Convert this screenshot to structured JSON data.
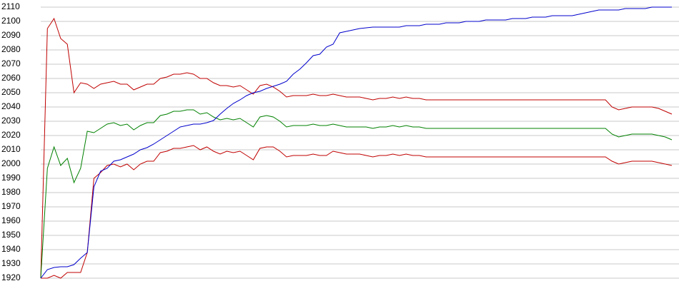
{
  "chart_data": {
    "type": "line",
    "categories": [
      null,
      null,
      null,
      null,
      null,
      null,
      null,
      null,
      null,
      null,
      null,
      null,
      null,
      null,
      null,
      null,
      null,
      null,
      null,
      null,
      null,
      null,
      null,
      null,
      null,
      null,
      null,
      null,
      null,
      null,
      null,
      null,
      null,
      null,
      null,
      null,
      null,
      null,
      null,
      null,
      null,
      null,
      null,
      null,
      null,
      null,
      null,
      null,
      null,
      null,
      null,
      null,
      null,
      null,
      null,
      null,
      null,
      null,
      null,
      null,
      null,
      null,
      null,
      null,
      null,
      null,
      null,
      null,
      null,
      null,
      null,
      null,
      null,
      null,
      null,
      null,
      null,
      null,
      null,
      null,
      null,
      null,
      null,
      null,
      null,
      null,
      null,
      null,
      null,
      null,
      null,
      null,
      null,
      null,
      null,
      null
    ],
    "series": [
      {
        "color": "#c00000",
        "values": [
          1920,
          2095,
          2102,
          2088,
          2084,
          2050,
          2057,
          2056,
          2053,
          2056,
          2057,
          2058,
          2056,
          2056,
          2052,
          2054,
          2056,
          2056,
          2060,
          2061,
          2063,
          2063,
          2064,
          2063,
          2060,
          2060,
          2057,
          2055,
          2055,
          2054,
          2055,
          2052,
          2049,
          2055,
          2056,
          2054,
          2051,
          2047,
          2048,
          2048,
          2048,
          2049,
          2048,
          2048,
          2049,
          2048,
          2047,
          2047,
          2047,
          2046,
          2045,
          2046,
          2046,
          2047,
          2046,
          2047,
          2046,
          2046,
          2045,
          2045,
          2045,
          2045,
          2045,
          2045,
          2045,
          2045,
          2045,
          2045,
          2045,
          2045,
          2045,
          2045,
          2045,
          2045,
          2045,
          2045,
          2045,
          2045,
          2045,
          2045,
          2045,
          2045,
          2045,
          2045,
          2045,
          2045,
          2040,
          2038,
          2039,
          2040,
          2040,
          2040,
          2040,
          2039,
          2037,
          2035
        ]
      },
      {
        "color": "#008000",
        "values": [
          1920,
          1997,
          2012,
          1999,
          2004,
          1987,
          1997,
          2023,
          2022,
          2025,
          2028,
          2029,
          2027,
          2028,
          2024,
          2027,
          2029,
          2029,
          2034,
          2035,
          2037,
          2037,
          2038,
          2038,
          2035,
          2036,
          2033,
          2031,
          2032,
          2031,
          2032,
          2029,
          2026,
          2033,
          2034,
          2033,
          2030,
          2026,
          2027,
          2027,
          2027,
          2028,
          2027,
          2027,
          2028,
          2027,
          2026,
          2026,
          2026,
          2026,
          2025,
          2026,
          2026,
          2027,
          2026,
          2027,
          2026,
          2026,
          2025,
          2025,
          2025,
          2025,
          2025,
          2025,
          2025,
          2025,
          2025,
          2025,
          2025,
          2025,
          2025,
          2025,
          2025,
          2025,
          2025,
          2025,
          2025,
          2025,
          2025,
          2025,
          2025,
          2025,
          2025,
          2025,
          2025,
          2025,
          2021,
          2019,
          2020,
          2021,
          2021,
          2021,
          2021,
          2020,
          2019,
          2017
        ]
      },
      {
        "color": "#c00000",
        "values": [
          1920,
          1920,
          1922,
          1920,
          1924,
          1924,
          1924,
          1938,
          1990,
          1994,
          1999,
          2000,
          1998,
          2000,
          1996,
          2000,
          2002,
          2002,
          2008,
          2009,
          2011,
          2011,
          2012,
          2013,
          2010,
          2012,
          2009,
          2007,
          2009,
          2008,
          2009,
          2006,
          2003,
          2011,
          2012,
          2012,
          2009,
          2005,
          2006,
          2006,
          2006,
          2007,
          2006,
          2006,
          2009,
          2008,
          2007,
          2007,
          2007,
          2006,
          2005,
          2006,
          2006,
          2007,
          2006,
          2007,
          2006,
          2006,
          2005,
          2005,
          2005,
          2005,
          2005,
          2005,
          2005,
          2005,
          2005,
          2005,
          2005,
          2005,
          2005,
          2005,
          2005,
          2005,
          2005,
          2005,
          2005,
          2005,
          2005,
          2005,
          2005,
          2005,
          2005,
          2005,
          2005,
          2005,
          2002,
          2000,
          2001,
          2002,
          2002,
          2002,
          2002,
          2001,
          2000,
          1999
        ]
      },
      {
        "color": "#0000cc",
        "values": [
          1920,
          1926,
          1927.5,
          1928,
          1928,
          1929.5,
          1934,
          1938,
          1984,
          1995,
          1997,
          2002,
          2003,
          2005,
          2007,
          2010,
          2011.5,
          2014,
          2017,
          2020,
          2023,
          2026,
          2027,
          2028,
          2028,
          2029,
          2030.5,
          2035,
          2039,
          2042.5,
          2045,
          2048,
          2050,
          2051,
          2053,
          2054.5,
          2056,
          2058,
          2063,
          2066.5,
          2071,
          2076,
          2077,
          2082,
          2084,
          2092,
          2093,
          2094,
          2095,
          2095.5,
          2096,
          2096,
          2096,
          2096,
          2096,
          2097,
          2097,
          2097,
          2098,
          2098,
          2098,
          2099,
          2099,
          2099,
          2100,
          2100,
          2100,
          2101,
          2101,
          2101,
          2101,
          2102,
          2102,
          2102,
          2103,
          2103,
          2103,
          2104,
          2104,
          2104,
          2104,
          2105,
          2106,
          2107,
          2108,
          2108,
          2108,
          2108,
          2109,
          2109,
          2109,
          2109,
          2110,
          2110,
          2110,
          2110
        ]
      }
    ],
    "ylim": [
      1920,
      2110
    ],
    "yticks": [
      1920,
      1930,
      1940,
      1950,
      1960,
      1970,
      1980,
      1990,
      2000,
      2010,
      2020,
      2030,
      2040,
      2050,
      2060,
      2070,
      2080,
      2090,
      2100,
      2110
    ],
    "grid": true
  }
}
